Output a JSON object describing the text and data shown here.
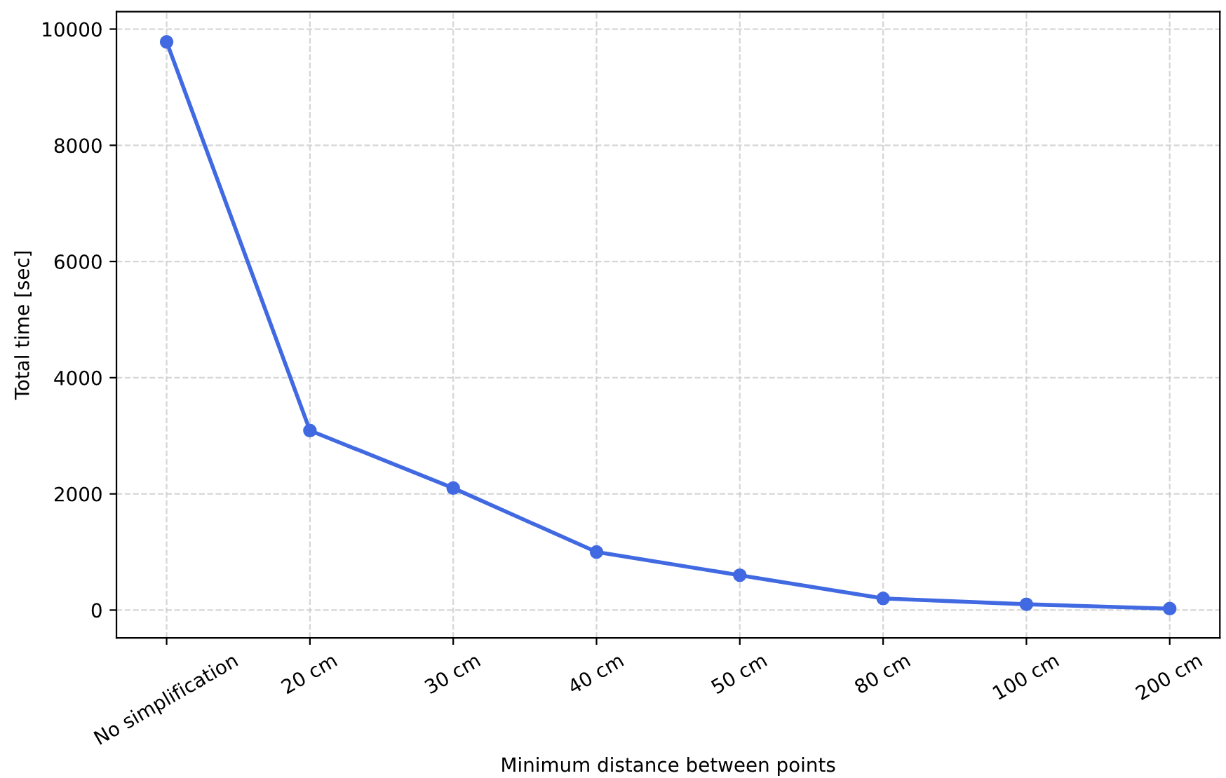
{
  "chart_data": {
    "type": "line",
    "xlabel": "Minimum distance between points",
    "ylabel": "Total time [sec]",
    "categories": [
      "No simplification",
      "20 cm",
      "30 cm",
      "40 cm",
      "50 cm",
      "80 cm",
      "100 cm",
      "200 cm"
    ],
    "series": [
      {
        "color": "#4169e1",
        "values": [
          9780,
          3090,
          2100,
          1000,
          600,
          200,
          100,
          25
        ]
      }
    ],
    "ylim": [
      -480,
      10300
    ],
    "yticks": [
      0,
      2000,
      4000,
      6000,
      8000,
      10000
    ],
    "grid": true,
    "marker": "circle",
    "line_style": "solid"
  }
}
